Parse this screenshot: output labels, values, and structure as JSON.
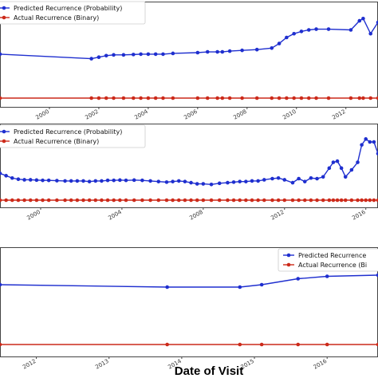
{
  "xlabel": "Date of Visit",
  "colors": {
    "predicted": "#1f2fcf",
    "actual": "#cc2a1a",
    "frame": "#444444"
  },
  "chart_data": [
    {
      "type": "line",
      "title": "",
      "xlim": [
        1998.0,
        2013.3
      ],
      "ylim": [
        -0.05,
        1.15
      ],
      "x_ticks": [
        "2000",
        "2002",
        "2004",
        "2006",
        "2008",
        "2010",
        "2012"
      ],
      "legend": {
        "placement": "top-left",
        "entries": [
          "Predicted Recurrence (Probability)",
          "Actual Recurrence (Binary)"
        ]
      },
      "series": [
        {
          "name": "Predicted Recurrence (Probability)",
          "x": [
            1998.0,
            2001.7,
            2002.0,
            2002.3,
            2002.6,
            2003.0,
            2003.4,
            2003.7,
            2004.0,
            2004.3,
            2004.6,
            2005.0,
            2006.0,
            2006.4,
            2006.8,
            2007.0,
            2007.3,
            2007.8,
            2008.4,
            2009.0,
            2009.3,
            2009.6,
            2009.9,
            2010.2,
            2010.5,
            2010.8,
            2011.3,
            2012.2,
            2012.55,
            2012.7,
            2013.0,
            2013.3
          ],
          "y": [
            0.58,
            0.52,
            0.54,
            0.56,
            0.57,
            0.57,
            0.575,
            0.58,
            0.58,
            0.58,
            0.58,
            0.59,
            0.6,
            0.61,
            0.61,
            0.61,
            0.62,
            0.63,
            0.64,
            0.66,
            0.72,
            0.8,
            0.85,
            0.88,
            0.9,
            0.91,
            0.91,
            0.9,
            1.02,
            1.05,
            0.85,
            1.0
          ]
        },
        {
          "name": "Actual Recurrence (Binary)",
          "x": [
            1998.0,
            2001.7,
            2002.0,
            2002.3,
            2002.6,
            2003.0,
            2003.4,
            2003.7,
            2004.0,
            2004.3,
            2004.6,
            2005.0,
            2006.0,
            2006.4,
            2006.8,
            2007.0,
            2007.3,
            2007.8,
            2008.4,
            2009.0,
            2009.3,
            2009.6,
            2009.9,
            2010.2,
            2010.5,
            2010.8,
            2011.3,
            2012.2,
            2012.55,
            2012.7,
            2013.0,
            2013.3
          ],
          "y": [
            0,
            0,
            0,
            0,
            0,
            0,
            0,
            0,
            0,
            0,
            0,
            0,
            0,
            0,
            0,
            0,
            0,
            0,
            0,
            0,
            0,
            0,
            0,
            0,
            0,
            0,
            0,
            0,
            0,
            0,
            0,
            0
          ]
        }
      ]
    },
    {
      "type": "line",
      "title": "",
      "xlim": [
        1998.0,
        2016.6
      ],
      "ylim": [
        -0.05,
        1.15
      ],
      "x_ticks": [
        "2000",
        "2004",
        "2008",
        "2012",
        "2016"
      ],
      "legend": {
        "placement": "top-left",
        "entries": [
          "Predicted Recurrence (Probability)",
          "Actual Recurrence (Binary)"
        ]
      },
      "series": [
        {
          "name": "Predicted Recurrence (Probability)",
          "x": [
            1998.0,
            1998.3,
            1998.6,
            1998.9,
            1999.2,
            1999.5,
            1999.8,
            2000.1,
            2000.4,
            2000.8,
            2001.2,
            2001.5,
            2001.8,
            2002.1,
            2002.4,
            2002.7,
            2003.0,
            2003.3,
            2003.6,
            2003.9,
            2004.2,
            2004.6,
            2005.0,
            2005.4,
            2005.8,
            2006.2,
            2006.5,
            2006.8,
            2007.1,
            2007.4,
            2007.7,
            2008.0,
            2008.4,
            2008.8,
            2009.2,
            2009.5,
            2009.8,
            2010.1,
            2010.4,
            2010.7,
            2011.0,
            2011.4,
            2011.7,
            2012.0,
            2012.4,
            2012.7,
            2013.0,
            2013.3,
            2013.6,
            2013.9,
            2014.2,
            2014.4,
            2014.6,
            2014.8,
            2015.0,
            2015.3,
            2015.6,
            2015.8,
            2016.0,
            2016.2,
            2016.4,
            2016.6
          ],
          "y": [
            0.46,
            0.42,
            0.38,
            0.36,
            0.35,
            0.35,
            0.345,
            0.34,
            0.34,
            0.335,
            0.33,
            0.33,
            0.33,
            0.33,
            0.32,
            0.33,
            0.33,
            0.34,
            0.34,
            0.345,
            0.34,
            0.345,
            0.34,
            0.33,
            0.32,
            0.31,
            0.32,
            0.33,
            0.32,
            0.3,
            0.28,
            0.28,
            0.27,
            0.29,
            0.3,
            0.31,
            0.32,
            0.32,
            0.33,
            0.33,
            0.35,
            0.37,
            0.38,
            0.35,
            0.3,
            0.37,
            0.32,
            0.38,
            0.37,
            0.4,
            0.55,
            0.65,
            0.67,
            0.55,
            0.4,
            0.52,
            0.65,
            0.95,
            1.05,
            1.0,
            1.0,
            0.8
          ]
        },
        {
          "name": "Actual Recurrence (Binary)",
          "x": [
            1998.0,
            1998.3,
            1998.6,
            1998.9,
            1999.2,
            1999.5,
            1999.8,
            2000.1,
            2000.4,
            2000.8,
            2001.2,
            2001.5,
            2001.8,
            2002.1,
            2002.4,
            2002.7,
            2003.0,
            2003.3,
            2003.6,
            2003.9,
            2004.2,
            2004.6,
            2005.0,
            2005.4,
            2005.8,
            2006.2,
            2006.5,
            2006.8,
            2007.1,
            2007.4,
            2007.7,
            2008.0,
            2008.4,
            2008.8,
            2009.2,
            2009.5,
            2009.8,
            2010.1,
            2010.4,
            2010.7,
            2011.0,
            2011.4,
            2011.7,
            2012.0,
            2012.4,
            2012.7,
            2013.0,
            2013.3,
            2013.6,
            2013.9,
            2014.2,
            2014.4,
            2014.6,
            2014.8,
            2015.0,
            2015.3,
            2015.6,
            2015.8,
            2016.0,
            2016.2,
            2016.4,
            2016.6
          ],
          "y": [
            0,
            0,
            0,
            0,
            0,
            0,
            0,
            0,
            0,
            0,
            0,
            0,
            0,
            0,
            0,
            0,
            0,
            0,
            0,
            0,
            0,
            0,
            0,
            0,
            0,
            0,
            0,
            0,
            0,
            0,
            0,
            0,
            0,
            0,
            0,
            0,
            0,
            0,
            0,
            0,
            0,
            0,
            0,
            0,
            0,
            0,
            0,
            0,
            0,
            0,
            0,
            0,
            0,
            0,
            0,
            0,
            0,
            0,
            0,
            0,
            0,
            0
          ]
        }
      ]
    },
    {
      "type": "line",
      "title": "",
      "xlim": [
        2011.5,
        2016.7
      ],
      "ylim": [
        -0.05,
        1.15
      ],
      "x_ticks": [
        "2012",
        "2013",
        "2014",
        "2015",
        "2016"
      ],
      "legend": {
        "placement": "top-right",
        "entries": [
          "Predicted Recurrence",
          "Actual Recurrence (Bi"
        ]
      },
      "series": [
        {
          "name": "Predicted Recurrence",
          "x": [
            2011.5,
            2013.8,
            2014.8,
            2015.1,
            2015.6,
            2016.0,
            2016.7
          ],
          "y": [
            0.5,
            0.48,
            0.48,
            0.5,
            0.55,
            0.57,
            0.58
          ]
        },
        {
          "name": "Actual Recurrence (Bi",
          "x": [
            2011.5,
            2013.8,
            2014.8,
            2015.1,
            2015.6,
            2016.0,
            2016.7
          ],
          "y": [
            0,
            0,
            0,
            0,
            0,
            0,
            0
          ]
        }
      ]
    }
  ]
}
